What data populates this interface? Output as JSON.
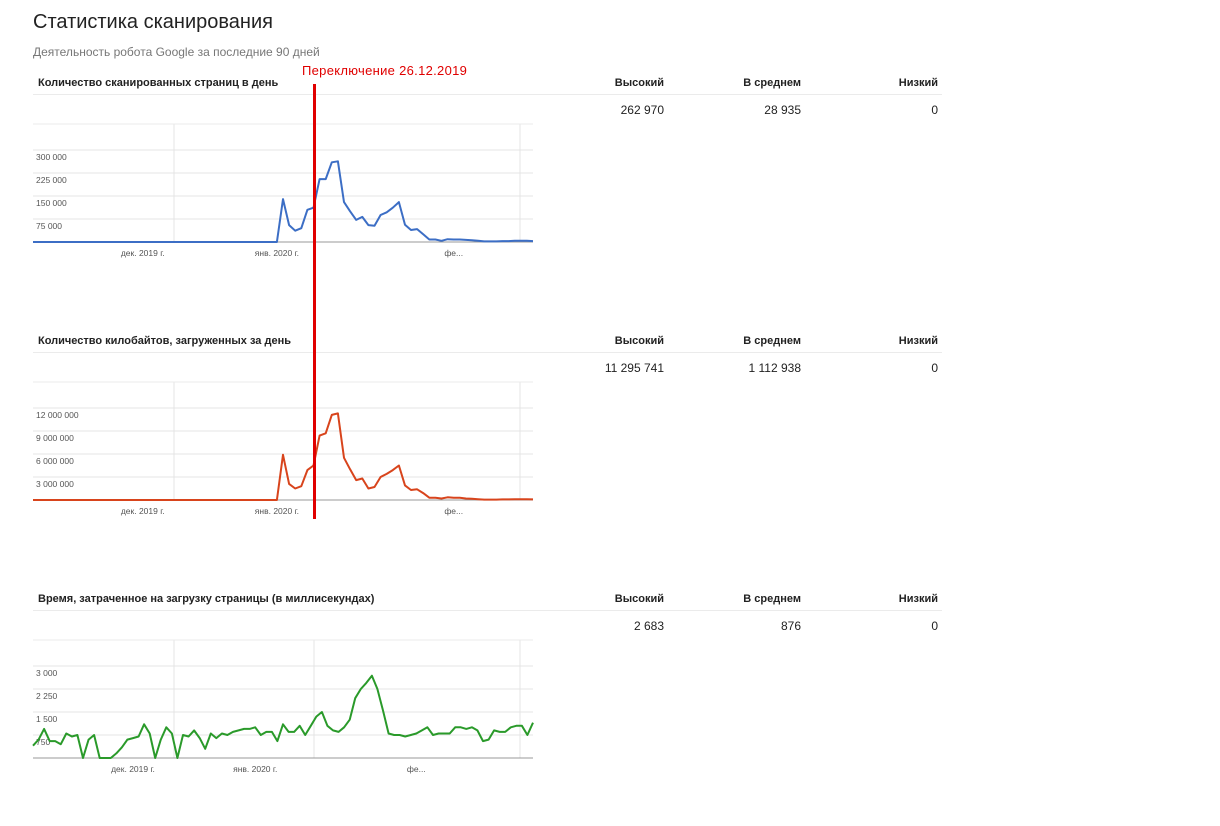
{
  "page": {
    "title": "Статистика сканирования",
    "subtitle": "Деятельность робота Google за последние 90 дней"
  },
  "annotation": {
    "label": "Переключение 26.12.2019",
    "color": "#e00000"
  },
  "stats_columns": [
    "Высокий",
    "В среднем",
    "Низкий"
  ],
  "chart_data": [
    {
      "type": "line",
      "title": "Количество сканированных страниц в день",
      "color": "#3c6ec5",
      "ylim": [
        0,
        300000
      ],
      "y_ticks": [
        75000,
        150000,
        225000,
        300000
      ],
      "y_tick_labels": [
        "75 000",
        "150 000",
        "225 000",
        "300 000"
      ],
      "x_labels": [
        {
          "index": 18,
          "label": "дек. 2019 г."
        },
        {
          "index": 40,
          "label": "янв. 2020 г."
        },
        {
          "index": 69,
          "label": "фе..."
        }
      ],
      "stats": {
        "high": "262 970",
        "avg": "28 935",
        "low": "0"
      },
      "values": [
        0,
        0,
        0,
        0,
        0,
        0,
        0,
        0,
        0,
        0,
        0,
        0,
        0,
        0,
        0,
        0,
        0,
        0,
        0,
        0,
        0,
        0,
        0,
        0,
        0,
        0,
        0,
        0,
        0,
        0,
        0,
        0,
        0,
        0,
        0,
        0,
        0,
        0,
        0,
        0,
        0,
        140000,
        55000,
        37000,
        45000,
        105000,
        112000,
        205000,
        205000,
        260000,
        263000,
        130000,
        100000,
        72000,
        82000,
        55000,
        53000,
        88000,
        97000,
        112000,
        130000,
        56000,
        39000,
        42000,
        25000,
        8000,
        8000,
        4000,
        9000,
        8000,
        8000,
        7000,
        6000,
        4000,
        2000,
        2000,
        2000,
        3000,
        3000,
        4000,
        4000,
        4000,
        3000
      ]
    },
    {
      "type": "line",
      "title": "Количество килобайтов, загруженных за день",
      "color": "#d8441c",
      "ylim": [
        0,
        12000000
      ],
      "y_ticks": [
        3000000,
        6000000,
        9000000,
        12000000
      ],
      "y_tick_labels": [
        "3 000 000",
        "6 000 000",
        "9 000 000",
        "12 000 000"
      ],
      "x_labels": [
        {
          "index": 18,
          "label": "дек. 2019 г."
        },
        {
          "index": 40,
          "label": "янв. 2020 г."
        },
        {
          "index": 69,
          "label": "фе..."
        }
      ],
      "stats": {
        "high": "11 295 741",
        "avg": "1 112 938",
        "low": "0"
      },
      "values": [
        0,
        0,
        0,
        0,
        0,
        0,
        0,
        0,
        0,
        0,
        0,
        0,
        0,
        0,
        0,
        0,
        0,
        0,
        0,
        0,
        0,
        0,
        0,
        0,
        0,
        0,
        0,
        0,
        0,
        0,
        0,
        0,
        0,
        0,
        0,
        0,
        0,
        0,
        0,
        0,
        0,
        5900000,
        2100000,
        1500000,
        1800000,
        3900000,
        4500000,
        8400000,
        8700000,
        11100000,
        11300000,
        5500000,
        4000000,
        2600000,
        2800000,
        1500000,
        1700000,
        3000000,
        3400000,
        3900000,
        4500000,
        1900000,
        1300000,
        1400000,
        900000,
        300000,
        300000,
        200000,
        350000,
        300000,
        300000,
        200000,
        150000,
        100000,
        50000,
        50000,
        50000,
        80000,
        80000,
        100000,
        100000,
        100000,
        80000
      ]
    },
    {
      "type": "line",
      "title": "Время, затраченное на загрузку страницы (в миллисекундах)",
      "color": "#2a9a2a",
      "ylim": [
        0,
        3000
      ],
      "y_ticks": [
        750,
        1500,
        2250,
        3000
      ],
      "y_tick_labels": [
        "750",
        "1 500",
        "2 250",
        "3 000"
      ],
      "x_labels": [
        {
          "index": 18,
          "label": "дек. 2019 г."
        },
        {
          "index": 40,
          "label": "янв. 2020 г."
        },
        {
          "index": 69,
          "label": "фе..."
        }
      ],
      "stats": {
        "high": "2 683",
        "avg": "876",
        "low": "0"
      },
      "values": [
        400,
        600,
        950,
        550,
        550,
        450,
        800,
        700,
        750,
        0,
        600,
        750,
        0,
        0,
        0,
        150,
        350,
        600,
        650,
        700,
        1100,
        800,
        0,
        600,
        1000,
        800,
        0,
        750,
        700,
        900,
        650,
        300,
        800,
        650,
        800,
        750,
        850,
        900,
        950,
        950,
        1000,
        750,
        850,
        850,
        550,
        1100,
        850,
        850,
        1050,
        750,
        1050,
        1350,
        1500,
        1050,
        900,
        850,
        1000,
        1250,
        1950,
        2250,
        2450,
        2683,
        2250,
        1550,
        800,
        750,
        750,
        700,
        750,
        800,
        900,
        1000,
        750,
        800,
        800,
        800,
        1000,
        1000,
        950,
        1000,
        900,
        550,
        600,
        900,
        850,
        850,
        1000,
        1050,
        1050,
        750,
        1150
      ]
    }
  ]
}
